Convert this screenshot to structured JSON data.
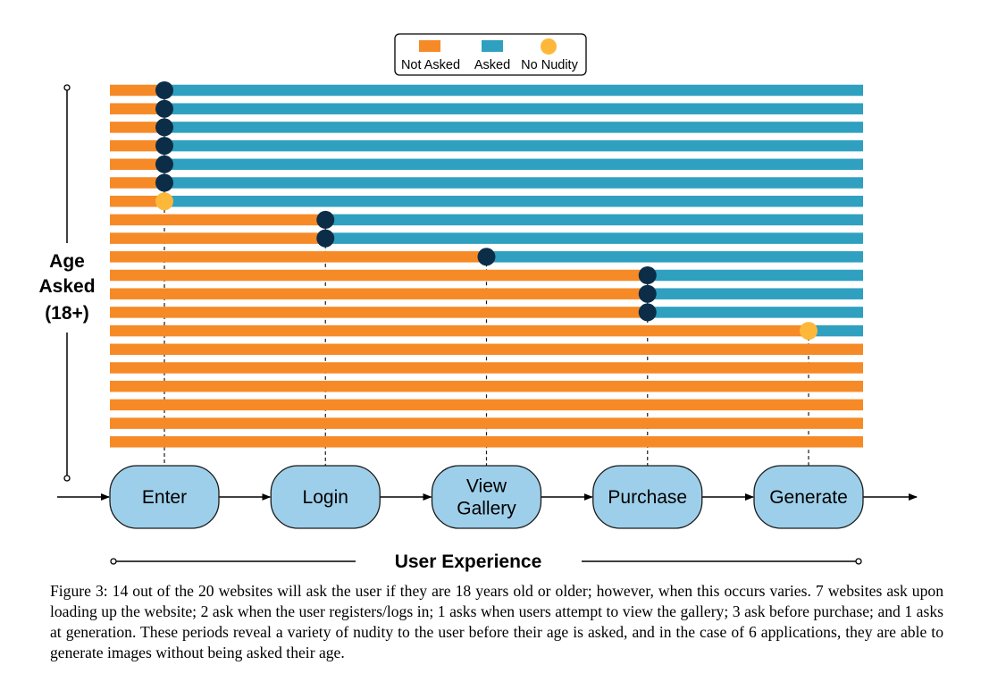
{
  "chart_data": {
    "type": "timeline-bar",
    "legend": {
      "placement": "top-center",
      "items": [
        {
          "label": "Not Asked",
          "shape": "bar",
          "color": "#f58a27"
        },
        {
          "label": "Asked",
          "shape": "bar",
          "color": "#2fa0bf"
        },
        {
          "label": "No Nudity",
          "shape": "dot",
          "color": "#fdb83a"
        }
      ]
    },
    "ylabel": [
      "Age",
      "Asked",
      "(18+)"
    ],
    "xlabel": "User Experience",
    "stages": [
      {
        "id": "enter",
        "label": [
          "Enter"
        ]
      },
      {
        "id": "login",
        "label": [
          "Login"
        ]
      },
      {
        "id": "gallery",
        "label": [
          "View",
          "Gallery"
        ]
      },
      {
        "id": "purchase",
        "label": [
          "Purchase"
        ]
      },
      {
        "id": "generate",
        "label": [
          "Generate"
        ]
      }
    ],
    "colors": {
      "not_asked": "#f58a27",
      "asked": "#2fa0bf",
      "nudity_dot": "#0c2d48",
      "no_nudity_dot": "#fdb83a",
      "stage_fill": "#9ecfea",
      "stage_stroke": "#1a1a1a"
    },
    "websites": [
      {
        "asked_at": 0,
        "no_nudity": false
      },
      {
        "asked_at": 0,
        "no_nudity": false
      },
      {
        "asked_at": 0,
        "no_nudity": false
      },
      {
        "asked_at": 0,
        "no_nudity": false
      },
      {
        "asked_at": 0,
        "no_nudity": false
      },
      {
        "asked_at": 0,
        "no_nudity": false
      },
      {
        "asked_at": 0,
        "no_nudity": true
      },
      {
        "asked_at": 1,
        "no_nudity": false
      },
      {
        "asked_at": 1,
        "no_nudity": false
      },
      {
        "asked_at": 2,
        "no_nudity": false
      },
      {
        "asked_at": 3,
        "no_nudity": false
      },
      {
        "asked_at": 3,
        "no_nudity": false
      },
      {
        "asked_at": 3,
        "no_nudity": false
      },
      {
        "asked_at": 4,
        "no_nudity": true
      },
      {
        "asked_at": null,
        "no_nudity": false
      },
      {
        "asked_at": null,
        "no_nudity": false
      },
      {
        "asked_at": null,
        "no_nudity": false
      },
      {
        "asked_at": null,
        "no_nudity": false
      },
      {
        "asked_at": null,
        "no_nudity": false
      },
      {
        "asked_at": null,
        "no_nudity": false
      }
    ]
  },
  "caption": {
    "text": "Figure 3: 14 out of the 20 websites will ask the user if they are 18 years old or older; however, when this occurs varies. 7 websites ask upon loading up the website; 2 ask when the user registers/logs in; 1 asks when users attempt to view the gallery; 3 ask before purchase; and 1 asks at generation. These periods reveal a variety of nudity to the user before their age is asked, and in the case of 6 applications, they are able to generate images without being asked their age."
  }
}
